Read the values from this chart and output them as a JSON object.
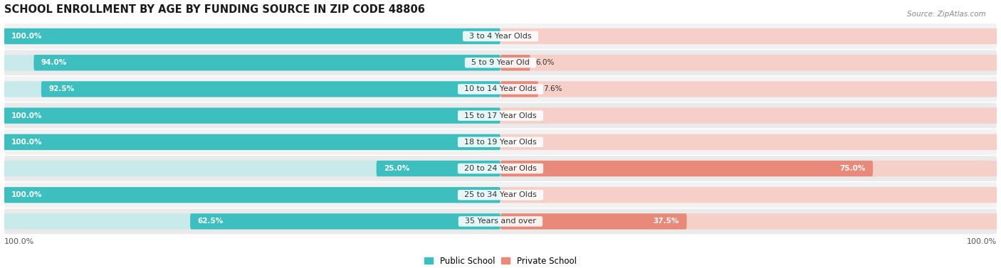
{
  "title": "SCHOOL ENROLLMENT BY AGE BY FUNDING SOURCE IN ZIP CODE 48806",
  "source": "Source: ZipAtlas.com",
  "categories": [
    "3 to 4 Year Olds",
    "5 to 9 Year Old",
    "10 to 14 Year Olds",
    "15 to 17 Year Olds",
    "18 to 19 Year Olds",
    "20 to 24 Year Olds",
    "25 to 34 Year Olds",
    "35 Years and over"
  ],
  "public_values": [
    100.0,
    94.0,
    92.5,
    100.0,
    100.0,
    25.0,
    100.0,
    62.5
  ],
  "private_values": [
    0.0,
    6.0,
    7.6,
    0.0,
    0.0,
    75.0,
    0.0,
    37.5
  ],
  "public_color": "#3DBFBF",
  "private_color": "#E8897A",
  "public_bg_color": "#C8EAEA",
  "private_bg_color": "#F5CFC8",
  "row_bg_even": "#F2F2F2",
  "row_bg_odd": "#EAEAEA",
  "text_color_white": "#FFFFFF",
  "text_color_dark": "#333333",
  "title_fontsize": 10.5,
  "label_fontsize": 8.0,
  "value_fontsize": 7.5,
  "legend_fontsize": 8.5,
  "axis_label_left": "100.0%",
  "axis_label_right": "100.0%"
}
